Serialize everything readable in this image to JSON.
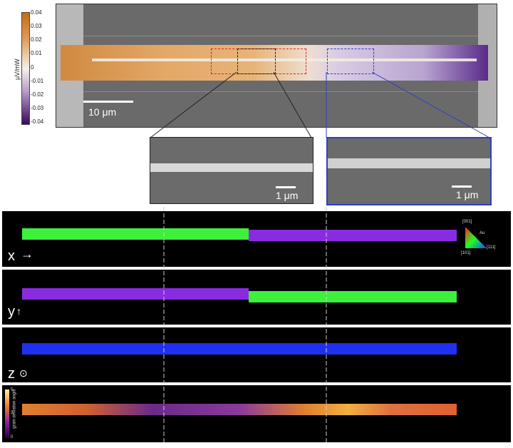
{
  "colorbar": {
    "unit": "μV/mW",
    "ticks": [
      "0.04",
      "0.03",
      "0.02",
      "0.01",
      "0",
      "-0.01",
      "-0.02",
      "-0.03",
      "-0.04"
    ],
    "color_max": "#c46a12",
    "color_zero": "#f5f0ea",
    "color_min": "#3a0a5a"
  },
  "sem": {
    "scalebar_label": "10 μm",
    "inset_left_scalebar": "1 μm",
    "inset_right_scalebar": "1 μm",
    "red_box_color": "#e02020",
    "blue_box_color": "#3040c0"
  },
  "ebsd": {
    "panels": [
      {
        "axis": "x",
        "axis_symbol": "→",
        "left_color": "#3cf03c",
        "right_color": "#8a2be2"
      },
      {
        "axis": "y",
        "axis_symbol": "↑",
        "left_color": "#8a2be2",
        "right_color": "#3cf03c"
      },
      {
        "axis": "z",
        "axis_symbol": "⊙",
        "left_color": "#2030f0",
        "right_color": "#2030f0"
      },
      {
        "axis": "",
        "axis_symbol": "",
        "left_color": "#e08030",
        "right_color": "#e06030"
      }
    ],
    "triangle_labels": {
      "top": "[001]",
      "left": "[101]",
      "right": "[111]",
      "material": "Au"
    },
    "gda_label": "grain deviation angle",
    "gda_ticks": [
      "5",
      "3",
      "0"
    ]
  }
}
